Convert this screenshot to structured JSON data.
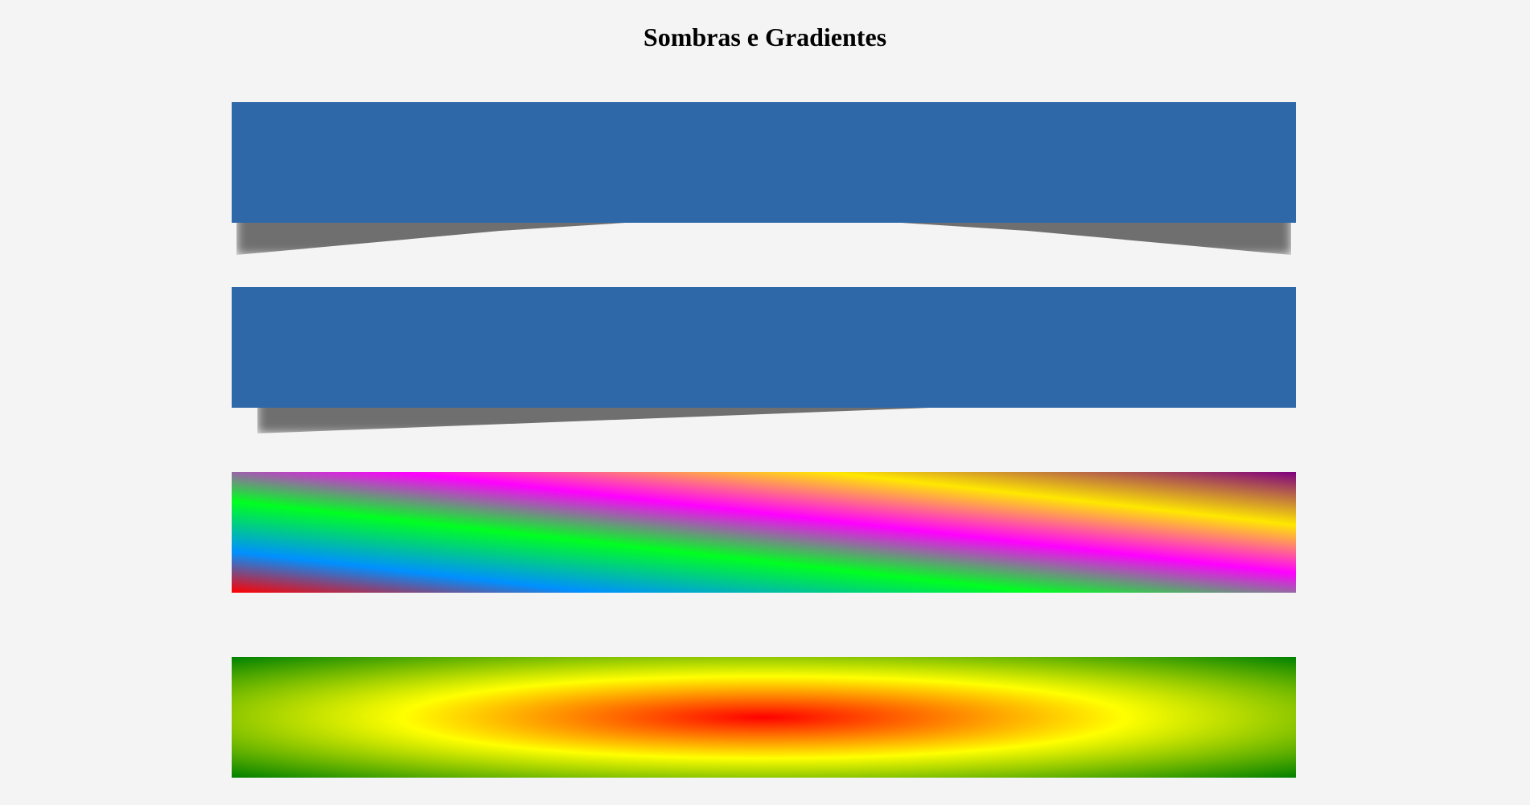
{
  "page": {
    "title": "Sombras e Gradientes"
  },
  "colors": {
    "background": "#f4f4f4",
    "box_blue": "#2e68a8",
    "shadow": "#6f6f6f",
    "linear_gradient_stops": [
      "#ff0000",
      "#0090ff",
      "#00ff20",
      "#ff00ff",
      "#ffe800",
      "#800080"
    ],
    "radial_gradient_stops": [
      "#ff0000",
      "#ffff00",
      "#008000"
    ]
  },
  "boxes": [
    {
      "id": "curved-shadow-box",
      "fill": "solid-blue",
      "effect": "curved-shadow"
    },
    {
      "id": "slanted-shadow-box",
      "fill": "solid-blue",
      "effect": "slanted-shadow"
    },
    {
      "id": "linear-gradient-box",
      "fill": "linear-gradient",
      "effect": "none"
    },
    {
      "id": "radial-gradient-box",
      "fill": "radial-gradient",
      "effect": "none"
    }
  ]
}
